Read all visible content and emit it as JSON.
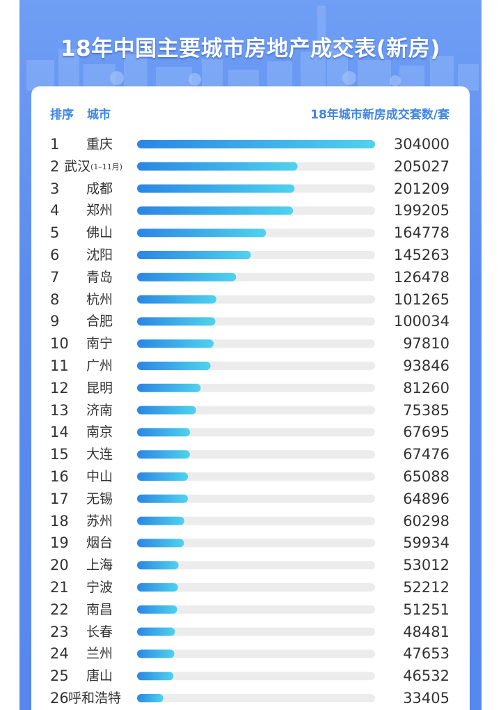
{
  "title": "18年中国主要城市房地产成交表(新房)",
  "header": {
    "rank_label": "排序",
    "city_label": "城市",
    "value_label": "18年城市新房成交套数/套"
  },
  "colors": {
    "background": "#5a8cef",
    "bar_start": "#2b86e4",
    "bar_end": "#4fd2ee",
    "track": "#ececec",
    "header_text": "#3f86e5"
  },
  "chart_data": {
    "type": "bar",
    "orientation": "horizontal",
    "title": "18年中国主要城市房地产成交表(新房)",
    "xlabel": "18年城市新房成交套数/套",
    "ylabel": "城市",
    "xlim": [
      0,
      304000
    ],
    "grid": false,
    "rows": [
      {
        "rank": "1",
        "city": "重庆",
        "note": "",
        "value": 304000
      },
      {
        "rank": "2",
        "city": "武汉",
        "note": "(1–11月)",
        "value": 205027
      },
      {
        "rank": "3",
        "city": "成都",
        "note": "",
        "value": 201209
      },
      {
        "rank": "4",
        "city": "郑州",
        "note": "",
        "value": 199205
      },
      {
        "rank": "5",
        "city": "佛山",
        "note": "",
        "value": 164778
      },
      {
        "rank": "6",
        "city": "沈阳",
        "note": "",
        "value": 145263
      },
      {
        "rank": "7",
        "city": "青岛",
        "note": "",
        "value": 126478
      },
      {
        "rank": "8",
        "city": "杭州",
        "note": "",
        "value": 101265
      },
      {
        "rank": "9",
        "city": "合肥",
        "note": "",
        "value": 100034
      },
      {
        "rank": "10",
        "city": "南宁",
        "note": "",
        "value": 97810
      },
      {
        "rank": "11",
        "city": "广州",
        "note": "",
        "value": 93846
      },
      {
        "rank": "12",
        "city": "昆明",
        "note": "",
        "value": 81260
      },
      {
        "rank": "13",
        "city": "济南",
        "note": "",
        "value": 75385
      },
      {
        "rank": "14",
        "city": "南京",
        "note": "",
        "value": 67695
      },
      {
        "rank": "15",
        "city": "大连",
        "note": "",
        "value": 67476
      },
      {
        "rank": "16",
        "city": "中山",
        "note": "",
        "value": 65088
      },
      {
        "rank": "17",
        "city": "无锡",
        "note": "",
        "value": 64896
      },
      {
        "rank": "18",
        "city": "苏州",
        "note": "",
        "value": 60298
      },
      {
        "rank": "19",
        "city": "烟台",
        "note": "",
        "value": 59934
      },
      {
        "rank": "20",
        "city": "上海",
        "note": "",
        "value": 53012
      },
      {
        "rank": "21",
        "city": "宁波",
        "note": "",
        "value": 52212
      },
      {
        "rank": "22",
        "city": "南昌",
        "note": "",
        "value": 51251
      },
      {
        "rank": "23",
        "city": "长春",
        "note": "",
        "value": 48481
      },
      {
        "rank": "24",
        "city": "兰州",
        "note": "",
        "value": 47653
      },
      {
        "rank": "25",
        "city": "唐山",
        "note": "",
        "value": 46532
      },
      {
        "rank": "26",
        "city": "呼和浩特",
        "note": "",
        "value": 33405
      }
    ]
  }
}
